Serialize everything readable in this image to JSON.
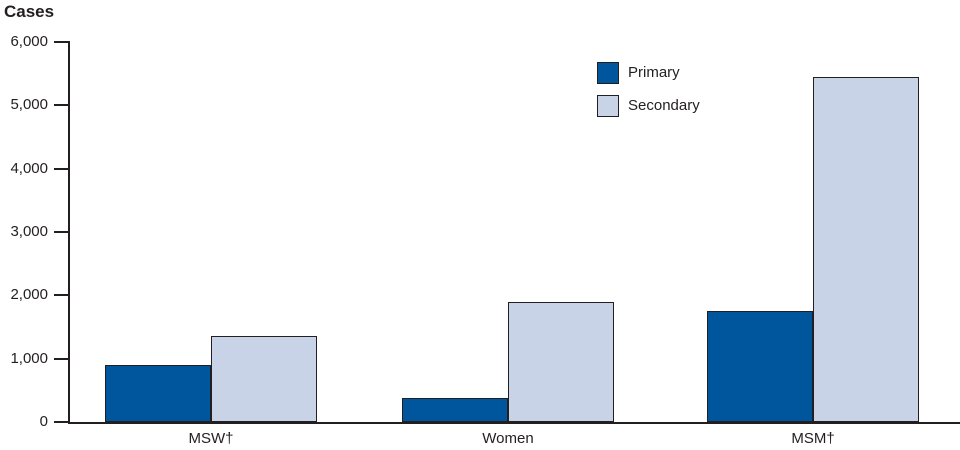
{
  "chart_data": {
    "type": "bar",
    "title": "Cases",
    "xlabel": "",
    "ylabel": "Cases",
    "categories": [
      "MSW†",
      "Women",
      "MSM†"
    ],
    "series": [
      {
        "name": "Primary",
        "color": "#00569d",
        "values": [
          900,
          380,
          1750
        ]
      },
      {
        "name": "Secondary",
        "color": "#c9d3e8",
        "values": [
          1350,
          1900,
          5450
        ]
      }
    ],
    "ylim": [
      0,
      6000
    ],
    "ytick_step": 1000,
    "ytick_labels": [
      "0",
      "1,000",
      "2,000",
      "3,000",
      "4,000",
      "5,000",
      "6,000"
    ],
    "grid": false,
    "legend_position": "upper-center-right",
    "axis_color": "#231f20",
    "bar_border_color": "#231f20"
  }
}
